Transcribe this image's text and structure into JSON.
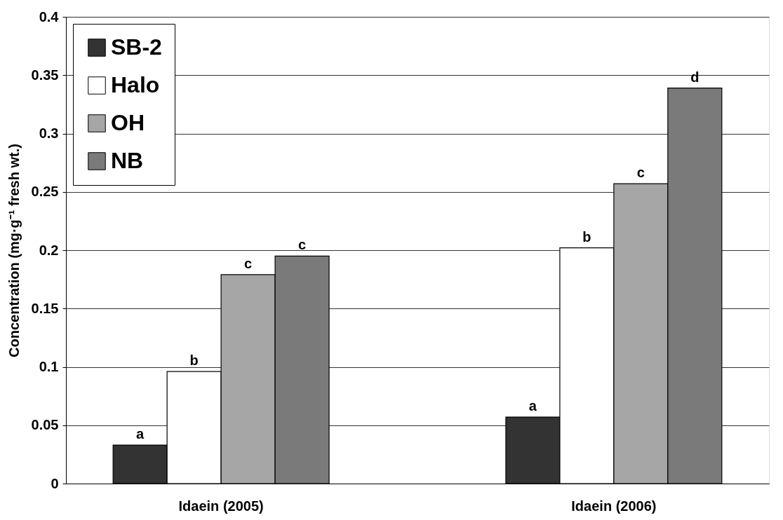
{
  "chart_data": {
    "type": "bar",
    "ylabel": "Concentration (mg·g⁻¹ fresh wt.)",
    "categories": [
      "Idaein (2005)",
      "Idaein (2006)"
    ],
    "series": [
      {
        "name": "SB-2",
        "color": "#333333",
        "values": [
          0.033,
          0.057
        ],
        "value_labels": [
          "a",
          "a"
        ]
      },
      {
        "name": "Halo",
        "color": "#ffffff",
        "values": [
          0.096,
          0.202
        ],
        "value_labels": [
          "b",
          "b"
        ]
      },
      {
        "name": "OH",
        "color": "#a6a6a6",
        "values": [
          0.179,
          0.257
        ],
        "value_labels": [
          "c",
          "c"
        ]
      },
      {
        "name": "NB",
        "color": "#7a7a7a",
        "values": [
          0.195,
          0.339
        ],
        "value_labels": [
          "c",
          "d"
        ]
      }
    ],
    "ylim": [
      0,
      0.4
    ],
    "yticks": [
      0,
      0.05,
      0.1,
      0.15,
      0.2,
      0.25,
      0.3,
      0.35,
      0.4
    ],
    "grid": "y",
    "legend": "top left"
  }
}
